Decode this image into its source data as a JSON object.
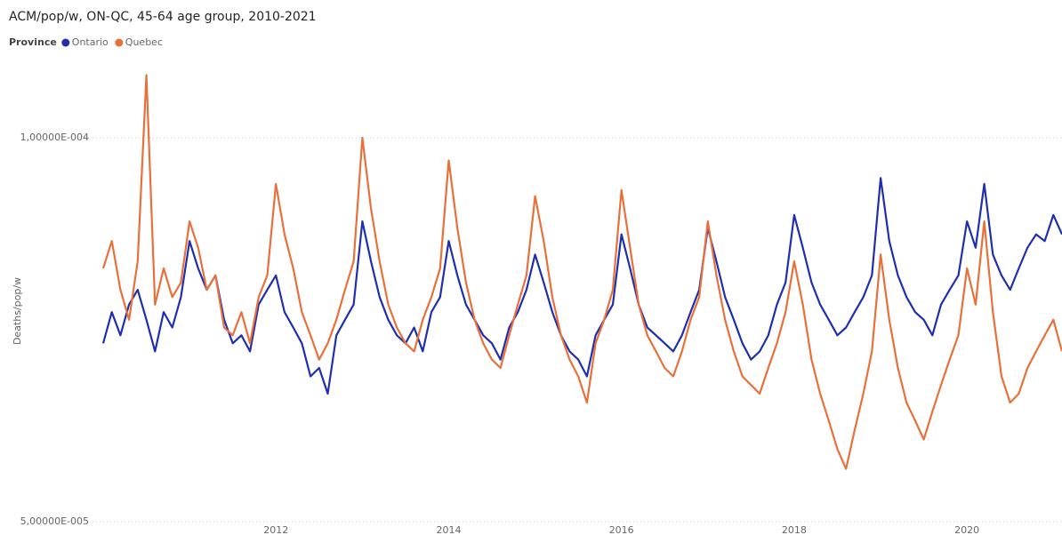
{
  "chart_data": {
    "type": "line",
    "title": "ACM/pop/w, ON-QC, 45-64 age group, 2010-2021",
    "legend_title": "Province",
    "y_label": "Deaths/pop/w",
    "log_y": true,
    "grid": true,
    "legend": "top-left",
    "xlim": [
      2010,
      2021.1
    ],
    "xticks": [
      2012,
      2014,
      2016,
      2018,
      2020
    ],
    "ylim": [
      5e-05,
      0.000115
    ],
    "yticks": [
      {
        "value": 5e-05,
        "label": "5,00000E-005"
      },
      {
        "value": 0.0001,
        "label": "1,00000E-004"
      }
    ],
    "x": [
      2010.0,
      2010.1,
      2010.2,
      2010.3,
      2010.4,
      2010.5,
      2010.6,
      2010.7,
      2010.8,
      2010.9,
      2011.0,
      2011.1,
      2011.2,
      2011.3,
      2011.4,
      2011.5,
      2011.6,
      2011.7,
      2011.8,
      2011.9,
      2012.0,
      2012.1,
      2012.2,
      2012.3,
      2012.4,
      2012.5,
      2012.6,
      2012.7,
      2012.8,
      2012.9,
      2013.0,
      2013.1,
      2013.2,
      2013.3,
      2013.4,
      2013.5,
      2013.6,
      2013.7,
      2013.8,
      2013.9,
      2014.0,
      2014.1,
      2014.2,
      2014.3,
      2014.4,
      2014.5,
      2014.6,
      2014.7,
      2014.8,
      2014.9,
      2015.0,
      2015.1,
      2015.2,
      2015.3,
      2015.4,
      2015.5,
      2015.6,
      2015.7,
      2015.8,
      2015.9,
      2016.0,
      2016.1,
      2016.2,
      2016.3,
      2016.4,
      2016.5,
      2016.6,
      2016.7,
      2016.8,
      2016.9,
      2017.0,
      2017.1,
      2017.2,
      2017.3,
      2017.4,
      2017.5,
      2017.6,
      2017.7,
      2017.8,
      2017.9,
      2018.0,
      2018.1,
      2018.2,
      2018.3,
      2018.4,
      2018.5,
      2018.6,
      2018.7,
      2018.8,
      2018.9,
      2019.0,
      2019.1,
      2019.2,
      2019.3,
      2019.4,
      2019.5,
      2019.6,
      2019.7,
      2019.8,
      2019.9,
      2020.0,
      2020.1,
      2020.2,
      2020.3,
      2020.4,
      2020.5,
      2020.6,
      2020.7,
      2020.8,
      2020.9,
      2021.0,
      2021.1
    ],
    "series": [
      {
        "name": "Ontario",
        "color": "#1f2fb0",
        "values": [
          6.9e-05,
          7.3e-05,
          7e-05,
          7.4e-05,
          7.6e-05,
          7.2e-05,
          6.8e-05,
          7.3e-05,
          7.1e-05,
          7.5e-05,
          8.3e-05,
          7.9e-05,
          7.6e-05,
          7.8e-05,
          7.2e-05,
          6.9e-05,
          7e-05,
          6.8e-05,
          7.4e-05,
          7.6e-05,
          7.8e-05,
          7.3e-05,
          7.1e-05,
          6.9e-05,
          6.5e-05,
          6.6e-05,
          6.3e-05,
          7e-05,
          7.2e-05,
          7.4e-05,
          8.6e-05,
          8e-05,
          7.5e-05,
          7.2e-05,
          7e-05,
          6.9e-05,
          7.1e-05,
          6.8e-05,
          7.3e-05,
          7.5e-05,
          8.3e-05,
          7.8e-05,
          7.4e-05,
          7.2e-05,
          7e-05,
          6.9e-05,
          6.7e-05,
          7.1e-05,
          7.3e-05,
          7.6e-05,
          8.1e-05,
          7.7e-05,
          7.3e-05,
          7e-05,
          6.8e-05,
          6.7e-05,
          6.5e-05,
          7e-05,
          7.2e-05,
          7.4e-05,
          8.4e-05,
          7.9e-05,
          7.4e-05,
          7.1e-05,
          7e-05,
          6.9e-05,
          6.8e-05,
          7e-05,
          7.3e-05,
          7.6e-05,
          8.5e-05,
          8e-05,
          7.5e-05,
          7.2e-05,
          6.9e-05,
          6.7e-05,
          6.8e-05,
          7e-05,
          7.4e-05,
          7.7e-05,
          8.7e-05,
          8.2e-05,
          7.7e-05,
          7.4e-05,
          7.2e-05,
          7e-05,
          7.1e-05,
          7.3e-05,
          7.5e-05,
          7.8e-05,
          9.3e-05,
          8.3e-05,
          7.8e-05,
          7.5e-05,
          7.3e-05,
          7.2e-05,
          7e-05,
          7.4e-05,
          7.6e-05,
          7.8e-05,
          8.6e-05,
          8.2e-05,
          9.2e-05,
          8.1e-05,
          7.8e-05,
          7.6e-05,
          7.9e-05,
          8.2e-05,
          8.4e-05,
          8.3e-05,
          8.7e-05,
          8.4e-05
        ]
      },
      {
        "name": "Quebec",
        "color": "#e8703a",
        "values": [
          7.9e-05,
          8.3e-05,
          7.6e-05,
          7.2e-05,
          8e-05,
          0.000112,
          7.4e-05,
          7.9e-05,
          7.5e-05,
          7.7e-05,
          8.6e-05,
          8.2e-05,
          7.6e-05,
          7.8e-05,
          7.1e-05,
          7e-05,
          7.3e-05,
          6.9e-05,
          7.5e-05,
          7.8e-05,
          9.2e-05,
          8.4e-05,
          7.9e-05,
          7.3e-05,
          7e-05,
          6.7e-05,
          6.9e-05,
          7.2e-05,
          7.6e-05,
          8e-05,
          0.0001,
          8.8e-05,
          8e-05,
          7.4e-05,
          7.1e-05,
          6.9e-05,
          6.8e-05,
          7.2e-05,
          7.5e-05,
          7.9e-05,
          9.6e-05,
          8.5e-05,
          7.7e-05,
          7.2e-05,
          6.9e-05,
          6.7e-05,
          6.6e-05,
          7e-05,
          7.4e-05,
          7.8e-05,
          9e-05,
          8.3e-05,
          7.5e-05,
          7e-05,
          6.7e-05,
          6.5e-05,
          6.2e-05,
          6.9e-05,
          7.2e-05,
          7.6e-05,
          9.1e-05,
          8.2e-05,
          7.4e-05,
          7e-05,
          6.8e-05,
          6.6e-05,
          6.5e-05,
          6.8e-05,
          7.2e-05,
          7.5e-05,
          8.6e-05,
          7.8e-05,
          7.2e-05,
          6.8e-05,
          6.5e-05,
          6.4e-05,
          6.3e-05,
          6.6e-05,
          6.9e-05,
          7.3e-05,
          8e-05,
          7.4e-05,
          6.7e-05,
          6.3e-05,
          6e-05,
          5.7e-05,
          5.5e-05,
          5.9e-05,
          6.3e-05,
          6.8e-05,
          8.1e-05,
          7.2e-05,
          6.6e-05,
          6.2e-05,
          6e-05,
          5.8e-05,
          6.1e-05,
          6.4e-05,
          6.7e-05,
          7e-05,
          7.9e-05,
          7.4e-05,
          8.6e-05,
          7.3e-05,
          6.5e-05,
          6.2e-05,
          6.3e-05,
          6.6e-05,
          6.8e-05,
          7e-05,
          7.2e-05,
          6.8e-05
        ]
      }
    ]
  }
}
